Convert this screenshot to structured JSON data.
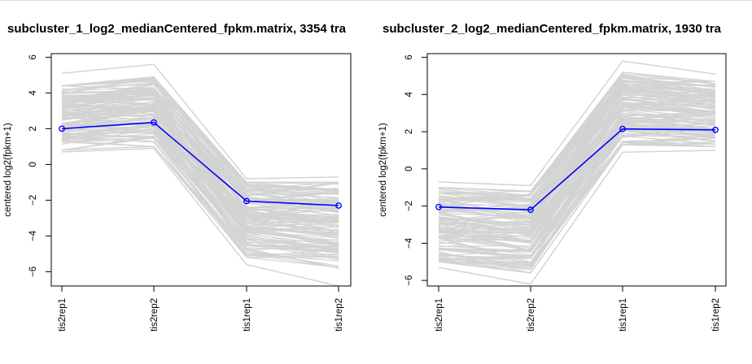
{
  "chart_data": [
    {
      "type": "line",
      "title": "subcluster_1_log2_medianCentered_fpkm.matrix, 3354 tra",
      "ylabel": "centered log2(fpkm+1)",
      "xlabel": "",
      "categories": [
        "tis2rep1",
        "tis2rep2",
        "tis1rep1",
        "tis1rep2"
      ],
      "yticks": [
        -6,
        -4,
        -2,
        0,
        2,
        4,
        6
      ],
      "ylim": [
        -6.8,
        6.2
      ],
      "series": [
        {
          "color": "#0000ff",
          "marker": "open-circle",
          "values": [
            2.0,
            2.35,
            -2.05,
            -2.3
          ]
        }
      ],
      "background_band": {
        "color": "#d3d3d3",
        "description_lines_min": [
          0.7,
          0.9,
          -5.6,
          -6.8
        ],
        "max": [
          5.1,
          5.6,
          -0.8,
          -0.7
        ],
        "median_upper": [
          4.4,
          4.9,
          -1.0,
          -1.0
        ],
        "median_lower": [
          0.8,
          1.0,
          -5.2,
          -5.8
        ]
      }
    },
    {
      "type": "line",
      "title": "subcluster_2_log2_medianCentered_fpkm.matrix, 1930 tra",
      "ylabel": "centered log2(fpkm+1)",
      "xlabel": "",
      "categories": [
        "tis2rep1",
        "tis2rep2",
        "tis1rep1",
        "tis1rep2"
      ],
      "yticks": [
        -6,
        -4,
        -2,
        0,
        2,
        4,
        6
      ],
      "ylim": [
        -6.3,
        6.2
      ],
      "series": [
        {
          "color": "#0000ff",
          "marker": "open-circle",
          "values": [
            -2.05,
            -2.2,
            2.15,
            2.1
          ]
        }
      ],
      "background_band": {
        "color": "#d3d3d3",
        "description_lines_min": [
          -5.3,
          -6.2,
          0.9,
          1.0
        ],
        "max": [
          -0.7,
          -0.9,
          5.8,
          5.1
        ],
        "median_upper": [
          -1.0,
          -1.2,
          5.2,
          4.7
        ],
        "median_lower": [
          -5.0,
          -5.6,
          1.3,
          1.2
        ]
      }
    }
  ]
}
